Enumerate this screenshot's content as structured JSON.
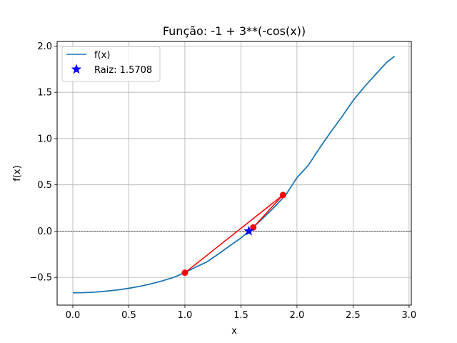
{
  "chart_data": {
    "type": "line",
    "title": "Função: -1 + 3**(-cos(x))",
    "xlabel": "x",
    "ylabel": "f(x)",
    "xlim": [
      -0.14,
      3.02
    ],
    "ylim": [
      -0.8,
      2.05
    ],
    "xticks": [
      0.0,
      0.5,
      1.0,
      1.5,
      2.0,
      2.5,
      3.0
    ],
    "xtick_labels": [
      "0.0",
      "0.5",
      "1.0",
      "1.5",
      "2.0",
      "2.5",
      "3.0"
    ],
    "yticks": [
      -0.5,
      0.0,
      0.5,
      1.0,
      1.5,
      2.0
    ],
    "ytick_labels": [
      "−0.5",
      "0.0",
      "0.5",
      "1.0",
      "1.5",
      "2.0"
    ],
    "grid": true,
    "zero_line": true,
    "legend_position": "upper-left",
    "series": [
      {
        "name": "f(x)",
        "kind": "line",
        "color": "#1f77b4",
        "x": [
          0.0,
          0.1,
          0.2,
          0.3,
          0.4,
          0.5,
          0.6,
          0.7,
          0.8,
          0.9,
          1.0,
          1.1,
          1.2,
          1.3,
          1.4,
          1.5,
          1.6,
          1.7,
          1.8,
          1.9,
          2.0,
          2.1,
          2.2,
          2.3,
          2.4,
          2.5,
          2.6,
          2.7,
          2.8,
          2.87
        ],
        "y": [
          -0.667,
          -0.665,
          -0.659,
          -0.649,
          -0.636,
          -0.618,
          -0.596,
          -0.569,
          -0.537,
          -0.5,
          -0.448,
          -0.387,
          -0.33,
          -0.247,
          -0.159,
          -0.075,
          0.032,
          0.143,
          0.262,
          0.391,
          0.578,
          0.71,
          0.893,
          1.069,
          1.234,
          1.41,
          1.557,
          1.692,
          1.823,
          1.89
        ]
      },
      {
        "name": "",
        "kind": "line-markers",
        "color": "#ff0000",
        "x": [
          1.0,
          1.875,
          1.61
        ],
        "y": [
          -0.45,
          0.39,
          0.04
        ]
      },
      {
        "name": "Raiz: 1.5708",
        "kind": "star",
        "color": "#0000ff",
        "x": [
          1.5708
        ],
        "y": [
          0.0
        ]
      }
    ],
    "legend": [
      {
        "label": "f(x)",
        "marker": "line",
        "color": "#1f77b4"
      },
      {
        "label": "Raiz: 1.5708",
        "marker": "star",
        "color": "#0000ff"
      }
    ]
  }
}
